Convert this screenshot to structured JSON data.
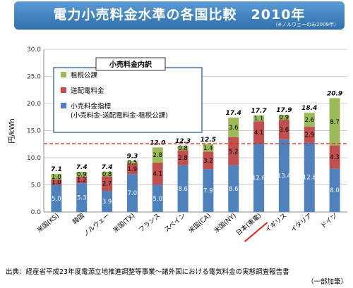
{
  "title": "電力小売料金水準の各国比較　2010年",
  "title_note": "（※ノルウェーのみ2009年）",
  "source_line1": "出典：経産省平成23年度電源立地推進調整等事業～諸外国における電気料金の実態調査報告書",
  "source_line2": "（一部加筆）",
  "colors": {
    "tax": "#9bbb59",
    "trans": "#c0504d",
    "retail": "#4f81bd",
    "ref_line": "#e02020",
    "highlight": "#e02020"
  },
  "chart_data": {
    "type": "bar",
    "stacked": true,
    "ylabel": "円/kWh",
    "ylim": [
      0,
      30
    ],
    "yticks": [
      "0.0",
      "5.0",
      "10.0",
      "15.0",
      "20.0",
      "25.0",
      "30.0"
    ],
    "grid": true,
    "reference_line": 12.6,
    "legend_title": "小売料金内訳",
    "legend_position": "top-left",
    "categories": [
      "米国(KS)",
      "韓国",
      "ノルウェー",
      "米国(TX)",
      "フランス",
      "スペイン",
      "米国(CA)",
      "米国(NY)",
      "日本(東電)",
      "イギリス",
      "イタリア",
      "ドイツ"
    ],
    "highlight_category": "日本(東電)",
    "totals": [
      "7.1",
      "7.4",
      "7.4",
      "9.3",
      "12.0",
      "12.3",
      "12.5",
      "17.4",
      "17.7",
      "17.9",
      "18.4",
      "20.9"
    ],
    "series": [
      {
        "name": "小売料金指標\n(小売料金-送配電料金-租税公課)",
        "key": "retail",
        "values": [
          5.0,
          5.3,
          3.9,
          7.0,
          5.0,
          8.6,
          7.9,
          8.6,
          12.6,
          13.4,
          12.8,
          8.0
        ],
        "labels": [
          "5.0",
          "5.3",
          "3.9",
          "7.0",
          "5.0",
          "8.6",
          "7.9",
          "8.6",
          "12.6",
          "13.4",
          "12.8",
          "8.0"
        ]
      },
      {
        "name": "送配電料金",
        "key": "trans",
        "values": [
          1.0,
          1.2,
          2.7,
          1.9,
          4.1,
          2.8,
          3.2,
          5.2,
          4.1,
          3.6,
          2.9,
          4.3
        ],
        "labels": [
          "1.0",
          "1.2",
          "2.7",
          "1.9",
          "4.1",
          "2.8",
          "3.2",
          "5.2",
          "4.1",
          "3.6",
          "2.9",
          "4.3"
        ]
      },
      {
        "name": "租税公課",
        "key": "tax",
        "values": [
          1.0,
          0.9,
          0.8,
          0.5,
          2.8,
          0.8,
          1.4,
          3.6,
          1.1,
          0.9,
          2.6,
          8.7
        ],
        "labels": [
          "1.0",
          "0.9",
          "0.8",
          "0.5",
          "2.8",
          "0.8",
          "1.4",
          "3.6",
          "1.1",
          "0.9",
          "2.6",
          "8.7"
        ]
      }
    ]
  }
}
